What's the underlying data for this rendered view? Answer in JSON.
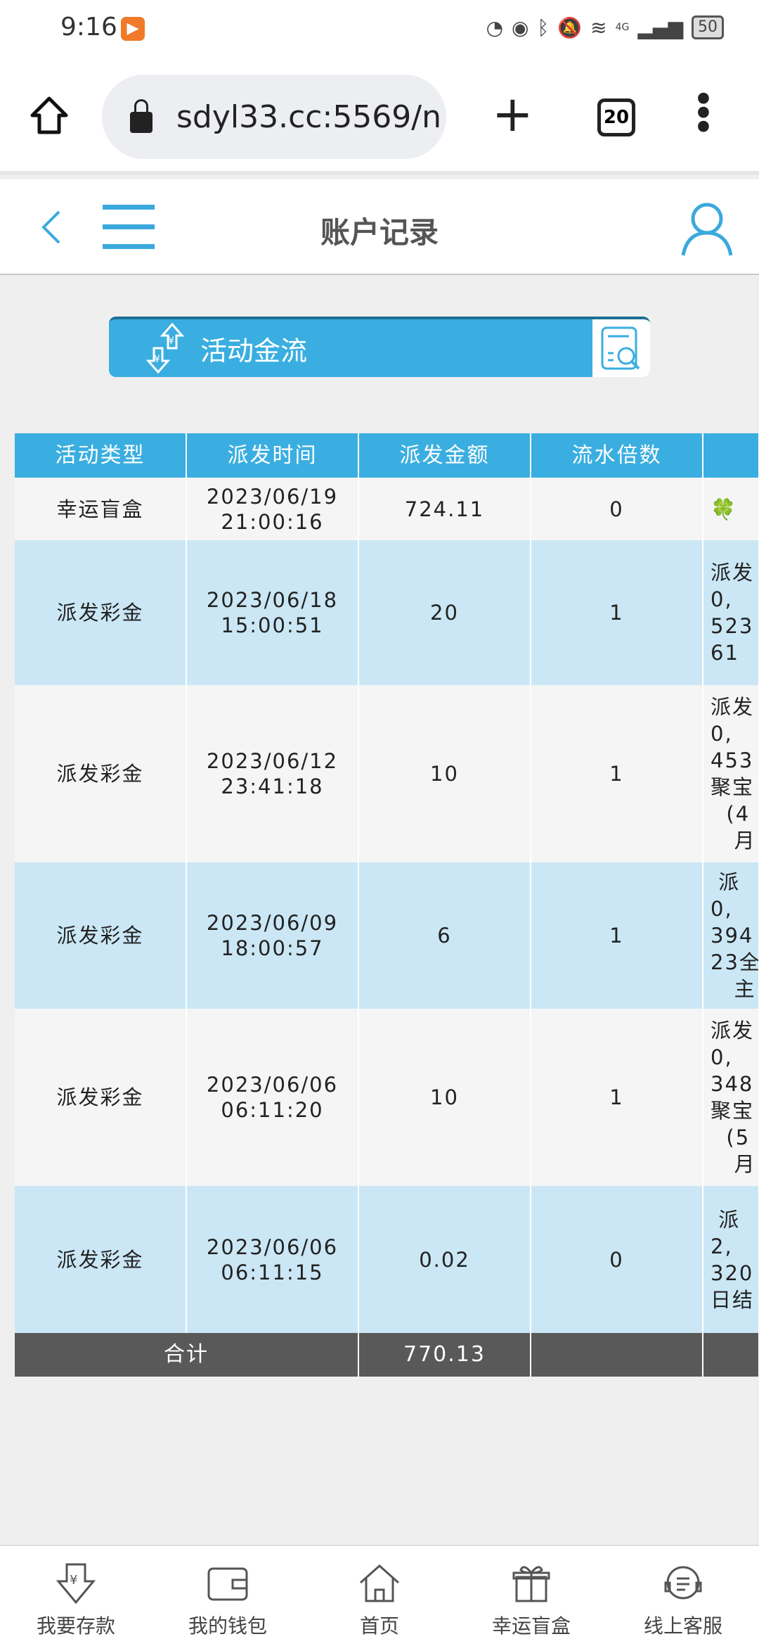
{
  "status_bar": {
    "time": "9:16",
    "battery": "50",
    "network": "4G"
  },
  "browser": {
    "url": "sdyl33.cc:5569/n",
    "tab_count": "20"
  },
  "header": {
    "title": "账户记录"
  },
  "banner": {
    "label": "活动金流"
  },
  "table": {
    "columns": [
      "活动类型",
      "派发时间",
      "派发金额",
      "流水倍数",
      ""
    ],
    "rows": [
      {
        "type": "幸运盲盒",
        "time": "2023/06/19\n21:00:16",
        "amount": "724.11",
        "multiplier": "0",
        "note": "🍀"
      },
      {
        "type": "派发彩金",
        "time": "2023/06/18\n15:00:51",
        "amount": "20",
        "multiplier": "1",
        "note": "派发\n0,\n523\n61"
      },
      {
        "type": "派发彩金",
        "time": "2023/06/12\n23:41:18",
        "amount": "10",
        "multiplier": "1",
        "note": "派发\n0,\n453\n聚宝\n  (4\n   月"
      },
      {
        "type": "派发彩金",
        "time": "2023/06/09\n18:00:57",
        "amount": "6",
        "multiplier": "1",
        "note": " 派\n0,\n394\n23全\n   主"
      },
      {
        "type": "派发彩金",
        "time": "2023/06/06\n06:11:20",
        "amount": "10",
        "multiplier": "1",
        "note": "派发\n0,\n348\n聚宝\n  (5\n   月"
      },
      {
        "type": "派发彩金",
        "time": "2023/06/06\n06:11:15",
        "amount": "0.02",
        "multiplier": "0",
        "note": " 派\n2,\n320\n日结"
      }
    ],
    "total": {
      "label": "合计",
      "amount": "770.13"
    }
  },
  "bottom_nav": [
    {
      "label": "我要存款",
      "icon": "deposit-icon"
    },
    {
      "label": "我的钱包",
      "icon": "wallet-icon"
    },
    {
      "label": "首页",
      "icon": "home-icon"
    },
    {
      "label": "幸运盲盒",
      "icon": "gift-icon"
    },
    {
      "label": "线上客服",
      "icon": "support-icon"
    }
  ],
  "colors": {
    "accent": "#3aaee0",
    "row_alt": "#cbe7f5",
    "total_bg": "#595959"
  }
}
